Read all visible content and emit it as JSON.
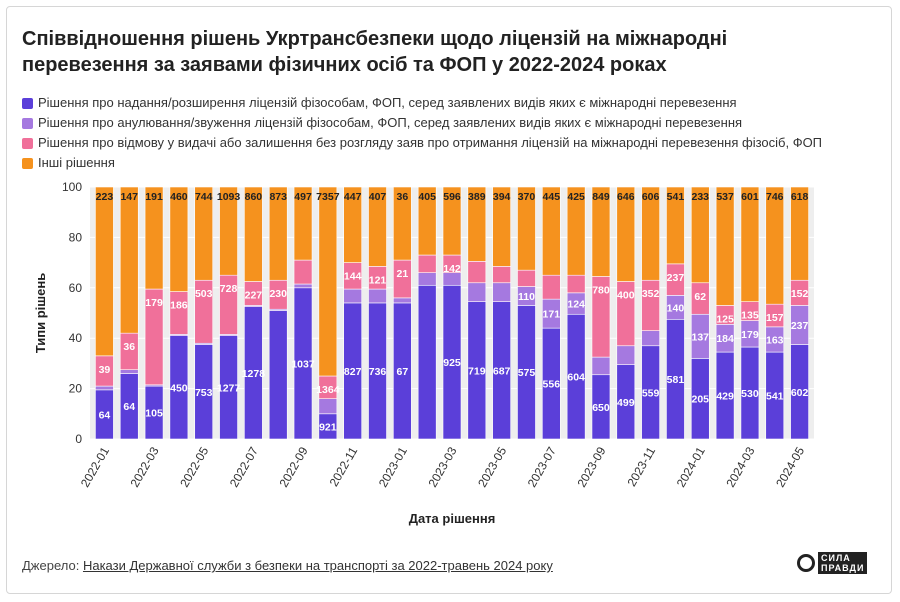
{
  "title_line1": "Співвідношення рішень Укртрансбезпеки щодо ліцензій на міжнародні",
  "title_line2": "перевезення за заявами фізичних осіб та ФОП у 2022-2024 роках",
  "source_label": "Джерело:",
  "source_link": "Накази Державної служби з безпеки на транспорті за 2022-травень 2024 року",
  "logo_line1": "СИЛА",
  "logo_line2": "ПРАВДИ",
  "colors": {
    "grant": "#5b3fd9",
    "cancel": "#a579e0",
    "refuse": "#f0709a",
    "other": "#f5921e"
  },
  "chart_data": {
    "type": "bar",
    "stacked": true,
    "normalized": true,
    "xlabel": "Дата рішення",
    "ylabel": "Типи рішень",
    "ylim": [
      0,
      100
    ],
    "yticks": [
      0,
      20,
      40,
      60,
      80,
      100
    ],
    "x_tick_labels": [
      "2022-01",
      "2022-03",
      "2022-05",
      "2022-07",
      "2022-09",
      "2022-11",
      "2023-01",
      "2023-03",
      "2023-05",
      "2023-07",
      "2023-09",
      "2023-11",
      "2024-01",
      "2024-03",
      "2024-05"
    ],
    "categories": [
      "2022-01",
      "2022-02",
      "2022-03",
      "2022-04",
      "2022-05",
      "2022-06",
      "2022-07",
      "2022-08",
      "2022-09",
      "2022-10",
      "2022-11",
      "2022-12",
      "2023-01",
      "2023-02",
      "2023-03",
      "2023-04",
      "2023-05",
      "2023-06",
      "2023-07",
      "2023-08",
      "2023-09",
      "2023-10",
      "2023-11",
      "2023-12",
      "2024-01",
      "2024-02",
      "2024-03",
      "2024-04",
      "2024-05"
    ],
    "series": [
      {
        "name": "Рішення про надання/розширення ліцензій фізособам, ФОП, серед заявлених видів яких є міжнародні перевезення",
        "key": "grant",
        "counts": [
          64,
          64,
          105,
          450,
          753,
          1277,
          1278,
          1037,
          1037,
          921,
          827,
          736,
          67,
          925,
          925,
          719,
          687,
          575,
          556,
          604,
          650,
          499,
          559,
          581,
          205,
          429,
          530,
          541,
          602
        ],
        "labels": [
          "64",
          "64",
          "105",
          "450",
          "753",
          "1277",
          "1278",
          "",
          "1037",
          "921",
          "827",
          "736",
          "67",
          "",
          "925",
          "719",
          "687",
          "575",
          "556",
          "604",
          "650",
          "499",
          "559",
          "581",
          "205",
          "429",
          "530",
          "541",
          "602"
        ],
        "values": [
          19.5,
          26.0,
          21.0,
          41.0,
          37.5,
          41.0,
          52.5,
          51.0,
          60.0,
          10.0,
          54.0,
          54.0,
          54.0,
          61.0,
          61.0,
          54.5,
          54.5,
          53.0,
          44.0,
          49.5,
          25.5,
          29.5,
          37.0,
          47.5,
          32.0,
          34.5,
          36.5,
          34.5,
          37.5
        ]
      },
      {
        "name": "Рішення про анулювання/звуження ліцензій фізособам, ФОП, серед заявлених видів яких є міжнародні перевезення",
        "key": "cancel",
        "counts": [
          0,
          0,
          0,
          0,
          0,
          0,
          0,
          0,
          0,
          0,
          0,
          0,
          0,
          0,
          0,
          0,
          0,
          110,
          171,
          124,
          0,
          0,
          0,
          140,
          137,
          184,
          179,
          163,
          237
        ],
        "labels": [
          "",
          "",
          "",
          "",
          "",
          "",
          "",
          "",
          "",
          "",
          "",
          "",
          "",
          "",
          "",
          "",
          "",
          "110",
          "171",
          "124",
          "",
          "",
          "",
          "140",
          "137",
          "184",
          "179",
          "163",
          "237"
        ],
        "values": [
          1.5,
          1.5,
          0.5,
          0.5,
          0.5,
          0.5,
          0.5,
          0.5,
          1.5,
          6.0,
          5.5,
          5.5,
          2.0,
          5.0,
          5.0,
          7.5,
          7.5,
          7.5,
          11.5,
          8.5,
          7.0,
          7.5,
          6.0,
          9.5,
          17.5,
          11.0,
          10.5,
          10.0,
          15.5
        ]
      },
      {
        "name": "Рішення про відмову у видачі або залишення без розгляду заяв про отримання ліцензій на міжнародні перевезення фізосіб, ФОП",
        "key": "refuse",
        "counts": [
          39,
          36,
          179,
          186,
          503,
          728,
          227,
          230,
          230,
          1364,
          144,
          121,
          21,
          142,
          142,
          0,
          0,
          0,
          0,
          0,
          780,
          400,
          352,
          237,
          62,
          125,
          135,
          157,
          152
        ],
        "labels": [
          "39",
          "36",
          "179",
          "186",
          "503",
          "728",
          "227",
          "230",
          "",
          "1364",
          "144",
          "121",
          "21",
          "",
          "142",
          "",
          "",
          "",
          "",
          "",
          "780",
          "400",
          "352",
          "237",
          "62",
          "125",
          "135",
          "157",
          "152"
        ],
        "values": [
          12.0,
          14.5,
          38.0,
          17.0,
          25.0,
          23.5,
          9.5,
          11.5,
          9.5,
          9.0,
          10.5,
          9.0,
          15.0,
          7.0,
          7.0,
          8.5,
          6.5,
          6.5,
          9.5,
          7.0,
          32.0,
          25.5,
          20.0,
          12.5,
          12.5,
          7.5,
          7.5,
          9.0,
          10.0
        ]
      },
      {
        "name": "Інші рішення",
        "key": "other",
        "counts": [
          223,
          147,
          191,
          460,
          744,
          1093,
          860,
          873,
          497,
          7357,
          447,
          407,
          36,
          405,
          596,
          389,
          394,
          370,
          445,
          425,
          849,
          646,
          606,
          541,
          233,
          537,
          601,
          746,
          618
        ],
        "labels": [
          "223",
          "147",
          "191",
          "460",
          "744",
          "1093",
          "860",
          "873",
          "497",
          "7357",
          "447",
          "407",
          "36",
          "405",
          "596",
          "389",
          "394",
          "370",
          "445",
          "425",
          "849",
          "646",
          "606",
          "541",
          "233",
          "537",
          "601",
          "746",
          "618"
        ],
        "values": [
          67.0,
          58.0,
          40.5,
          41.5,
          37.0,
          35.0,
          37.5,
          37.0,
          29.0,
          75.0,
          30.0,
          31.5,
          29.0,
          27.0,
          27.0,
          29.5,
          31.5,
          33.0,
          35.0,
          35.0,
          35.5,
          37.5,
          37.0,
          30.5,
          38.0,
          47.0,
          45.5,
          46.5,
          37.0
        ]
      }
    ]
  }
}
